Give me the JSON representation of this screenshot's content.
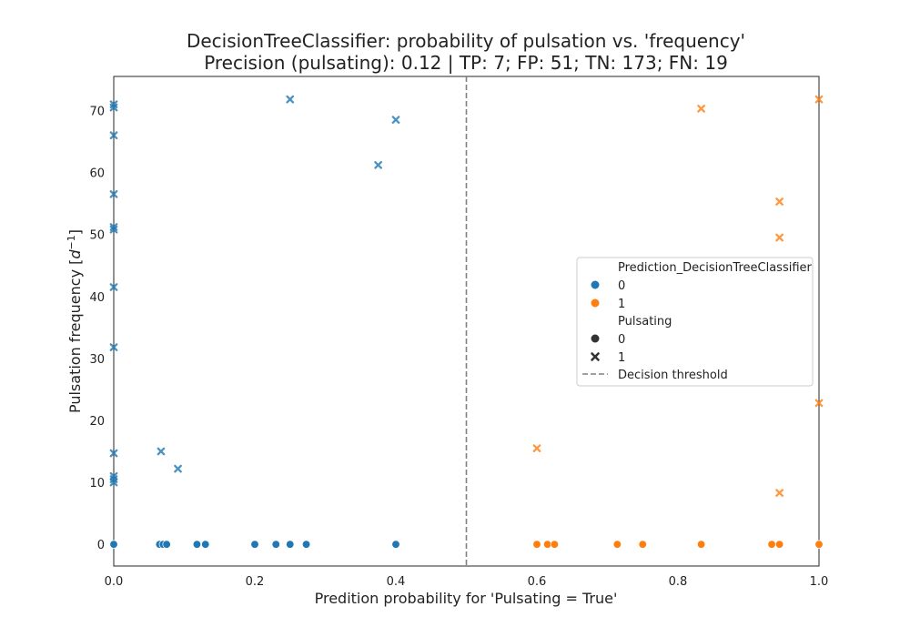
{
  "chart_data": {
    "type": "scatter",
    "title_line1": "DecisionTreeClassifier: probability of pulsation vs. 'frequency'",
    "title_line2": "Precision (pulsating): 0.12 | TP: 7; FP: 51; TN: 173; FN: 19",
    "xlabel": "Predition probability for 'Pulsating = True'",
    "ylabel_main": "Pulsation frequency [",
    "ylabel_var": "d",
    "ylabel_sup": "−1",
    "ylabel_end": "]",
    "xlim": [
      0.0,
      1.0
    ],
    "ylim": [
      -3.5,
      75.5
    ],
    "x_ticks": [
      0.0,
      0.2,
      0.4,
      0.6,
      0.8,
      1.0
    ],
    "x_tick_labels": [
      "0.0",
      "0.2",
      "0.4",
      "0.6",
      "0.8",
      "1.0"
    ],
    "y_ticks": [
      0,
      10,
      20,
      30,
      40,
      50,
      60,
      70
    ],
    "y_tick_labels": [
      "0",
      "10",
      "20",
      "30",
      "40",
      "50",
      "60",
      "70"
    ],
    "grid": false,
    "threshold": 0.5,
    "colors": {
      "pred_0": "#1f77b4",
      "pred_1": "#ff7f0e",
      "threshold": "#808080",
      "neutral": "#333333"
    },
    "series": [
      {
        "prediction": 0,
        "pulsating": 0,
        "marker": "circle",
        "points": [
          [
            0.0,
            0
          ],
          [
            0.065,
            0
          ],
          [
            0.07,
            0
          ],
          [
            0.075,
            0
          ],
          [
            0.118,
            0
          ],
          [
            0.13,
            0
          ],
          [
            0.2,
            0
          ],
          [
            0.23,
            0
          ],
          [
            0.25,
            0
          ],
          [
            0.273,
            0
          ],
          [
            0.4,
            0
          ]
        ]
      },
      {
        "prediction": 0,
        "pulsating": 1,
        "marker": "x",
        "points": [
          [
            0.0,
            71
          ],
          [
            0.0,
            70.5
          ],
          [
            0.0,
            66
          ],
          [
            0.0,
            56.5
          ],
          [
            0.0,
            51.2
          ],
          [
            0.0,
            50.8
          ],
          [
            0.0,
            41.5
          ],
          [
            0.0,
            31.8
          ],
          [
            0.0,
            14.7
          ],
          [
            0.0,
            11
          ],
          [
            0.0,
            10.5
          ],
          [
            0.0,
            10
          ],
          [
            0.25,
            71.8
          ],
          [
            0.4,
            68.5
          ],
          [
            0.375,
            61.2
          ],
          [
            0.067,
            15
          ],
          [
            0.091,
            12.2
          ]
        ]
      },
      {
        "prediction": 1,
        "pulsating": 0,
        "marker": "circle",
        "points": [
          [
            0.6,
            0
          ],
          [
            0.615,
            0
          ],
          [
            0.625,
            0
          ],
          [
            0.714,
            0
          ],
          [
            0.75,
            0
          ],
          [
            0.833,
            0
          ],
          [
            0.933,
            0
          ],
          [
            0.944,
            0
          ],
          [
            1.0,
            0
          ]
        ]
      },
      {
        "prediction": 1,
        "pulsating": 1,
        "marker": "x",
        "points": [
          [
            0.833,
            70.3
          ],
          [
            1.0,
            71.8
          ],
          [
            0.944,
            55.3
          ],
          [
            0.944,
            49.5
          ],
          [
            1.0,
            22.8
          ],
          [
            0.6,
            15.5
          ],
          [
            0.944,
            8.3
          ]
        ]
      }
    ],
    "legend": {
      "placement": "center-right",
      "hue_title": "Prediction_DecisionTreeClassifier",
      "hue_items": [
        "0",
        "1"
      ],
      "style_title": "Pulsating",
      "style_items": [
        "0",
        "1"
      ],
      "threshold_label": "Decision threshold"
    }
  }
}
